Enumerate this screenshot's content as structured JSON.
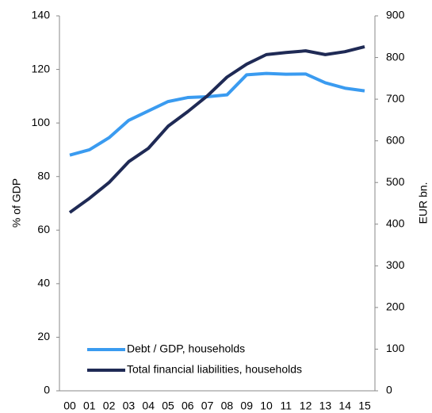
{
  "chart_data": {
    "type": "line",
    "categories": [
      "00",
      "01",
      "02",
      "03",
      "04",
      "05",
      "06",
      "07",
      "08",
      "09",
      "10",
      "11",
      "12",
      "13",
      "14",
      "15"
    ],
    "series": [
      {
        "name": "Debt / GDP, households",
        "color": "#3a9bf0",
        "values": [
          88,
          90,
          94.5,
          101,
          104.5,
          108,
          109.5,
          109.8,
          110.5,
          118,
          118.5,
          118.2,
          118.3,
          115,
          113,
          112
        ]
      },
      {
        "name": "Total financial liabilities, households",
        "color": "#1f2a55",
        "axis": "y2",
        "values": [
          428,
          462,
          500,
          550,
          582,
          635,
          670,
          708,
          753,
          784,
          807,
          812,
          816,
          807,
          814,
          826
        ]
      }
    ],
    "ylabel": "% of GDP",
    "y2label": "EUR bn.",
    "ylim": [
      0,
      140
    ],
    "yticks": [
      0,
      20,
      40,
      60,
      80,
      100,
      120,
      140
    ],
    "y2lim": [
      0,
      900
    ],
    "y2ticks": [
      0,
      100,
      200,
      300,
      400,
      500,
      600,
      700,
      800,
      900
    ],
    "legend": "lower left"
  }
}
